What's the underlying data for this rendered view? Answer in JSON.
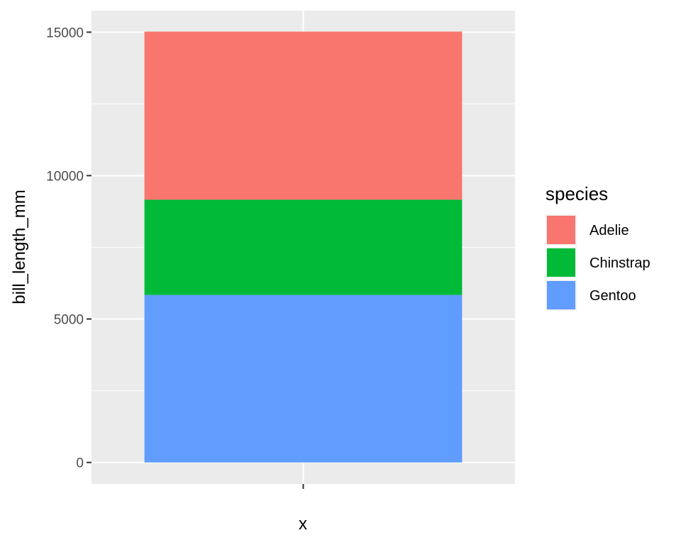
{
  "chart_data": {
    "type": "bar",
    "stacked": true,
    "categories": [
      ""
    ],
    "series": [
      {
        "name": "Adelie",
        "values": [
          5860
        ],
        "color": "#F8766D"
      },
      {
        "name": "Chinstrap",
        "values": [
          3320
        ],
        "color": "#00BA38"
      },
      {
        "name": "Gentoo",
        "values": [
          5840
        ],
        "color": "#619CFF"
      }
    ],
    "xlabel": "x",
    "ylabel": "bill_length_mm",
    "ylim": [
      -750,
      15750
    ],
    "yticks": [
      0,
      5000,
      10000,
      15000
    ],
    "ytick_labels": [
      "0",
      "5000",
      "10000",
      "15000"
    ],
    "grid": true,
    "panel_background": "#EBEBEB",
    "legend": {
      "title": "species",
      "placement": "right",
      "entries": [
        "Adelie",
        "Chinstrap",
        "Gentoo"
      ]
    }
  }
}
